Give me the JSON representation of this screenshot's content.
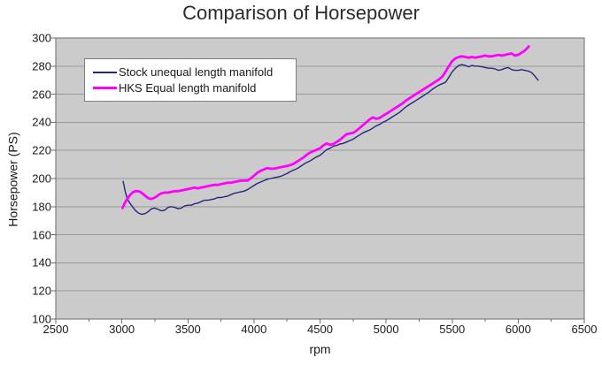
{
  "chart_data": {
    "type": "line",
    "title": "Comparison of Horsepower",
    "xlabel": "rpm",
    "ylabel": "Horsepower (PS)",
    "xlim": [
      2500,
      6500
    ],
    "ylim": [
      100,
      300
    ],
    "x_ticks": [
      2500,
      3000,
      3500,
      4000,
      4500,
      5000,
      5500,
      6000,
      6500
    ],
    "y_ticks": [
      100,
      120,
      140,
      160,
      180,
      200,
      220,
      240,
      260,
      280,
      300
    ],
    "grid": "horizontal",
    "legend_position": "top-left-inside",
    "plot_bg": "#cbcbcb",
    "grid_color": "#9a9a9a",
    "border_color": "#6b6b6b",
    "series": [
      {
        "name": "Stock unequal length manifold",
        "color": "#26267f",
        "width": 1.4,
        "points": [
          [
            3010,
            198
          ],
          [
            3025,
            191
          ],
          [
            3040,
            186
          ],
          [
            3060,
            182.5
          ],
          [
            3080,
            180
          ],
          [
            3100,
            177.5
          ],
          [
            3125,
            175.5
          ],
          [
            3150,
            174.5
          ],
          [
            3175,
            175
          ],
          [
            3200,
            176.5
          ],
          [
            3225,
            178.5
          ],
          [
            3250,
            179
          ],
          [
            3275,
            178
          ],
          [
            3300,
            177
          ],
          [
            3325,
            177.5
          ],
          [
            3350,
            179.5
          ],
          [
            3375,
            180
          ],
          [
            3400,
            179.5
          ],
          [
            3425,
            178.5
          ],
          [
            3450,
            179
          ],
          [
            3475,
            180.5
          ],
          [
            3500,
            181
          ],
          [
            3525,
            181
          ],
          [
            3550,
            182
          ],
          [
            3575,
            182.5
          ],
          [
            3600,
            183.5
          ],
          [
            3625,
            184.5
          ],
          [
            3650,
            184.5
          ],
          [
            3675,
            185
          ],
          [
            3700,
            185.5
          ],
          [
            3725,
            186.5
          ],
          [
            3750,
            186.5
          ],
          [
            3775,
            187
          ],
          [
            3800,
            187.5
          ],
          [
            3825,
            188.5
          ],
          [
            3850,
            189.5
          ],
          [
            3875,
            190
          ],
          [
            3900,
            190.5
          ],
          [
            3925,
            191
          ],
          [
            3950,
            192
          ],
          [
            3975,
            193.5
          ],
          [
            4000,
            195
          ],
          [
            4025,
            196.5
          ],
          [
            4050,
            197.5
          ],
          [
            4075,
            198.5
          ],
          [
            4100,
            199.5
          ],
          [
            4125,
            200
          ],
          [
            4150,
            200.5
          ],
          [
            4175,
            201
          ],
          [
            4200,
            201.5
          ],
          [
            4225,
            202.5
          ],
          [
            4250,
            203.5
          ],
          [
            4275,
            205
          ],
          [
            4300,
            206
          ],
          [
            4325,
            207
          ],
          [
            4350,
            208.5
          ],
          [
            4375,
            210
          ],
          [
            4400,
            211.5
          ],
          [
            4425,
            212.5
          ],
          [
            4450,
            214
          ],
          [
            4475,
            215.5
          ],
          [
            4500,
            216.5
          ],
          [
            4525,
            218.5
          ],
          [
            4550,
            220.5
          ],
          [
            4575,
            221.5
          ],
          [
            4600,
            223
          ],
          [
            4625,
            223.5
          ],
          [
            4650,
            224.5
          ],
          [
            4675,
            225
          ],
          [
            4700,
            226
          ],
          [
            4725,
            227
          ],
          [
            4750,
            228
          ],
          [
            4775,
            229.5
          ],
          [
            4800,
            231
          ],
          [
            4825,
            232.5
          ],
          [
            4850,
            233.5
          ],
          [
            4875,
            234.5
          ],
          [
            4900,
            236
          ],
          [
            4925,
            237.5
          ],
          [
            4950,
            238.5
          ],
          [
            4975,
            240
          ],
          [
            5000,
            241
          ],
          [
            5025,
            242.5
          ],
          [
            5050,
            244
          ],
          [
            5075,
            245.5
          ],
          [
            5100,
            247
          ],
          [
            5125,
            249
          ],
          [
            5150,
            251
          ],
          [
            5175,
            252.5
          ],
          [
            5200,
            254
          ],
          [
            5225,
            255.5
          ],
          [
            5250,
            257
          ],
          [
            5275,
            258.5
          ],
          [
            5300,
            260
          ],
          [
            5325,
            261.5
          ],
          [
            5350,
            263.5
          ],
          [
            5375,
            265
          ],
          [
            5400,
            266.5
          ],
          [
            5425,
            267.5
          ],
          [
            5450,
            268.5
          ],
          [
            5475,
            272
          ],
          [
            5500,
            276
          ],
          [
            5525,
            278.5
          ],
          [
            5550,
            280.5
          ],
          [
            5575,
            281
          ],
          [
            5600,
            280.5
          ],
          [
            5625,
            279.5
          ],
          [
            5650,
            280.5
          ],
          [
            5675,
            280
          ],
          [
            5700,
            280
          ],
          [
            5725,
            279.5
          ],
          [
            5750,
            279
          ],
          [
            5775,
            278.5
          ],
          [
            5800,
            278.5
          ],
          [
            5825,
            278
          ],
          [
            5850,
            277
          ],
          [
            5875,
            277.5
          ],
          [
            5900,
            278.5
          ],
          [
            5925,
            279
          ],
          [
            5950,
            277.5
          ],
          [
            5975,
            277
          ],
          [
            6000,
            277
          ],
          [
            6025,
            277.5
          ],
          [
            6050,
            277
          ],
          [
            6075,
            276.5
          ],
          [
            6100,
            275.5
          ],
          [
            6125,
            273
          ],
          [
            6150,
            270
          ]
        ]
      },
      {
        "name": "HKS Equal length manifold",
        "color": "#ff00ff",
        "width": 2.8,
        "points": [
          [
            3005,
            179
          ],
          [
            3020,
            182
          ],
          [
            3040,
            185.5
          ],
          [
            3060,
            188
          ],
          [
            3080,
            190
          ],
          [
            3100,
            191
          ],
          [
            3120,
            191
          ],
          [
            3140,
            190.5
          ],
          [
            3160,
            189
          ],
          [
            3180,
            187.5
          ],
          [
            3200,
            186
          ],
          [
            3220,
            185.5
          ],
          [
            3240,
            186
          ],
          [
            3260,
            187
          ],
          [
            3280,
            188.5
          ],
          [
            3300,
            189.5
          ],
          [
            3325,
            190
          ],
          [
            3350,
            190
          ],
          [
            3375,
            190.5
          ],
          [
            3400,
            191
          ],
          [
            3425,
            191
          ],
          [
            3450,
            191.5
          ],
          [
            3475,
            192
          ],
          [
            3500,
            192.5
          ],
          [
            3525,
            193
          ],
          [
            3550,
            193.5
          ],
          [
            3575,
            193
          ],
          [
            3600,
            193.5
          ],
          [
            3625,
            194
          ],
          [
            3650,
            194.5
          ],
          [
            3675,
            195
          ],
          [
            3700,
            195.5
          ],
          [
            3725,
            195.5
          ],
          [
            3750,
            196
          ],
          [
            3775,
            196.5
          ],
          [
            3800,
            197
          ],
          [
            3825,
            197
          ],
          [
            3850,
            197.5
          ],
          [
            3875,
            198
          ],
          [
            3900,
            198.5
          ],
          [
            3925,
            198.5
          ],
          [
            3950,
            198.5
          ],
          [
            3975,
            200
          ],
          [
            4000,
            202
          ],
          [
            4025,
            204
          ],
          [
            4050,
            205.5
          ],
          [
            4075,
            206.5
          ],
          [
            4100,
            207.5
          ],
          [
            4125,
            207
          ],
          [
            4150,
            207
          ],
          [
            4175,
            207.5
          ],
          [
            4200,
            208
          ],
          [
            4225,
            208.5
          ],
          [
            4250,
            209
          ],
          [
            4275,
            209.5
          ],
          [
            4300,
            210.5
          ],
          [
            4325,
            212
          ],
          [
            4350,
            213.5
          ],
          [
            4375,
            215
          ],
          [
            4400,
            217
          ],
          [
            4425,
            218.5
          ],
          [
            4450,
            219.5
          ],
          [
            4475,
            220.5
          ],
          [
            4500,
            221.5
          ],
          [
            4525,
            223.5
          ],
          [
            4550,
            225
          ],
          [
            4575,
            224
          ],
          [
            4600,
            224.5
          ],
          [
            4625,
            226
          ],
          [
            4650,
            227.5
          ],
          [
            4675,
            229.5
          ],
          [
            4700,
            231.5
          ],
          [
            4725,
            232
          ],
          [
            4750,
            232.5
          ],
          [
            4775,
            234
          ],
          [
            4800,
            236
          ],
          [
            4825,
            238
          ],
          [
            4850,
            240
          ],
          [
            4875,
            242
          ],
          [
            4900,
            243.5
          ],
          [
            4925,
            242.5
          ],
          [
            4950,
            243
          ],
          [
            4975,
            244.5
          ],
          [
            5000,
            246
          ],
          [
            5025,
            247.5
          ],
          [
            5050,
            249
          ],
          [
            5075,
            250.5
          ],
          [
            5100,
            252
          ],
          [
            5125,
            253.5
          ],
          [
            5150,
            255.5
          ],
          [
            5175,
            257
          ],
          [
            5200,
            258.5
          ],
          [
            5225,
            260
          ],
          [
            5250,
            261.5
          ],
          [
            5275,
            263
          ],
          [
            5300,
            264.5
          ],
          [
            5325,
            266
          ],
          [
            5350,
            267.5
          ],
          [
            5375,
            269
          ],
          [
            5400,
            270.5
          ],
          [
            5425,
            272.5
          ],
          [
            5450,
            276
          ],
          [
            5475,
            280
          ],
          [
            5500,
            283.5
          ],
          [
            5525,
            285.5
          ],
          [
            5550,
            286.5
          ],
          [
            5575,
            287
          ],
          [
            5600,
            286.5
          ],
          [
            5625,
            286
          ],
          [
            5650,
            286.5
          ],
          [
            5675,
            286
          ],
          [
            5700,
            286.5
          ],
          [
            5725,
            287
          ],
          [
            5750,
            287.5
          ],
          [
            5775,
            287
          ],
          [
            5800,
            287
          ],
          [
            5825,
            287.5
          ],
          [
            5850,
            288
          ],
          [
            5875,
            287.5
          ],
          [
            5900,
            288
          ],
          [
            5925,
            288.5
          ],
          [
            5950,
            289
          ],
          [
            5975,
            287.5
          ],
          [
            6000,
            288
          ],
          [
            6025,
            289.5
          ],
          [
            6050,
            291
          ],
          [
            6065,
            292.5
          ],
          [
            6080,
            294
          ]
        ]
      }
    ]
  }
}
